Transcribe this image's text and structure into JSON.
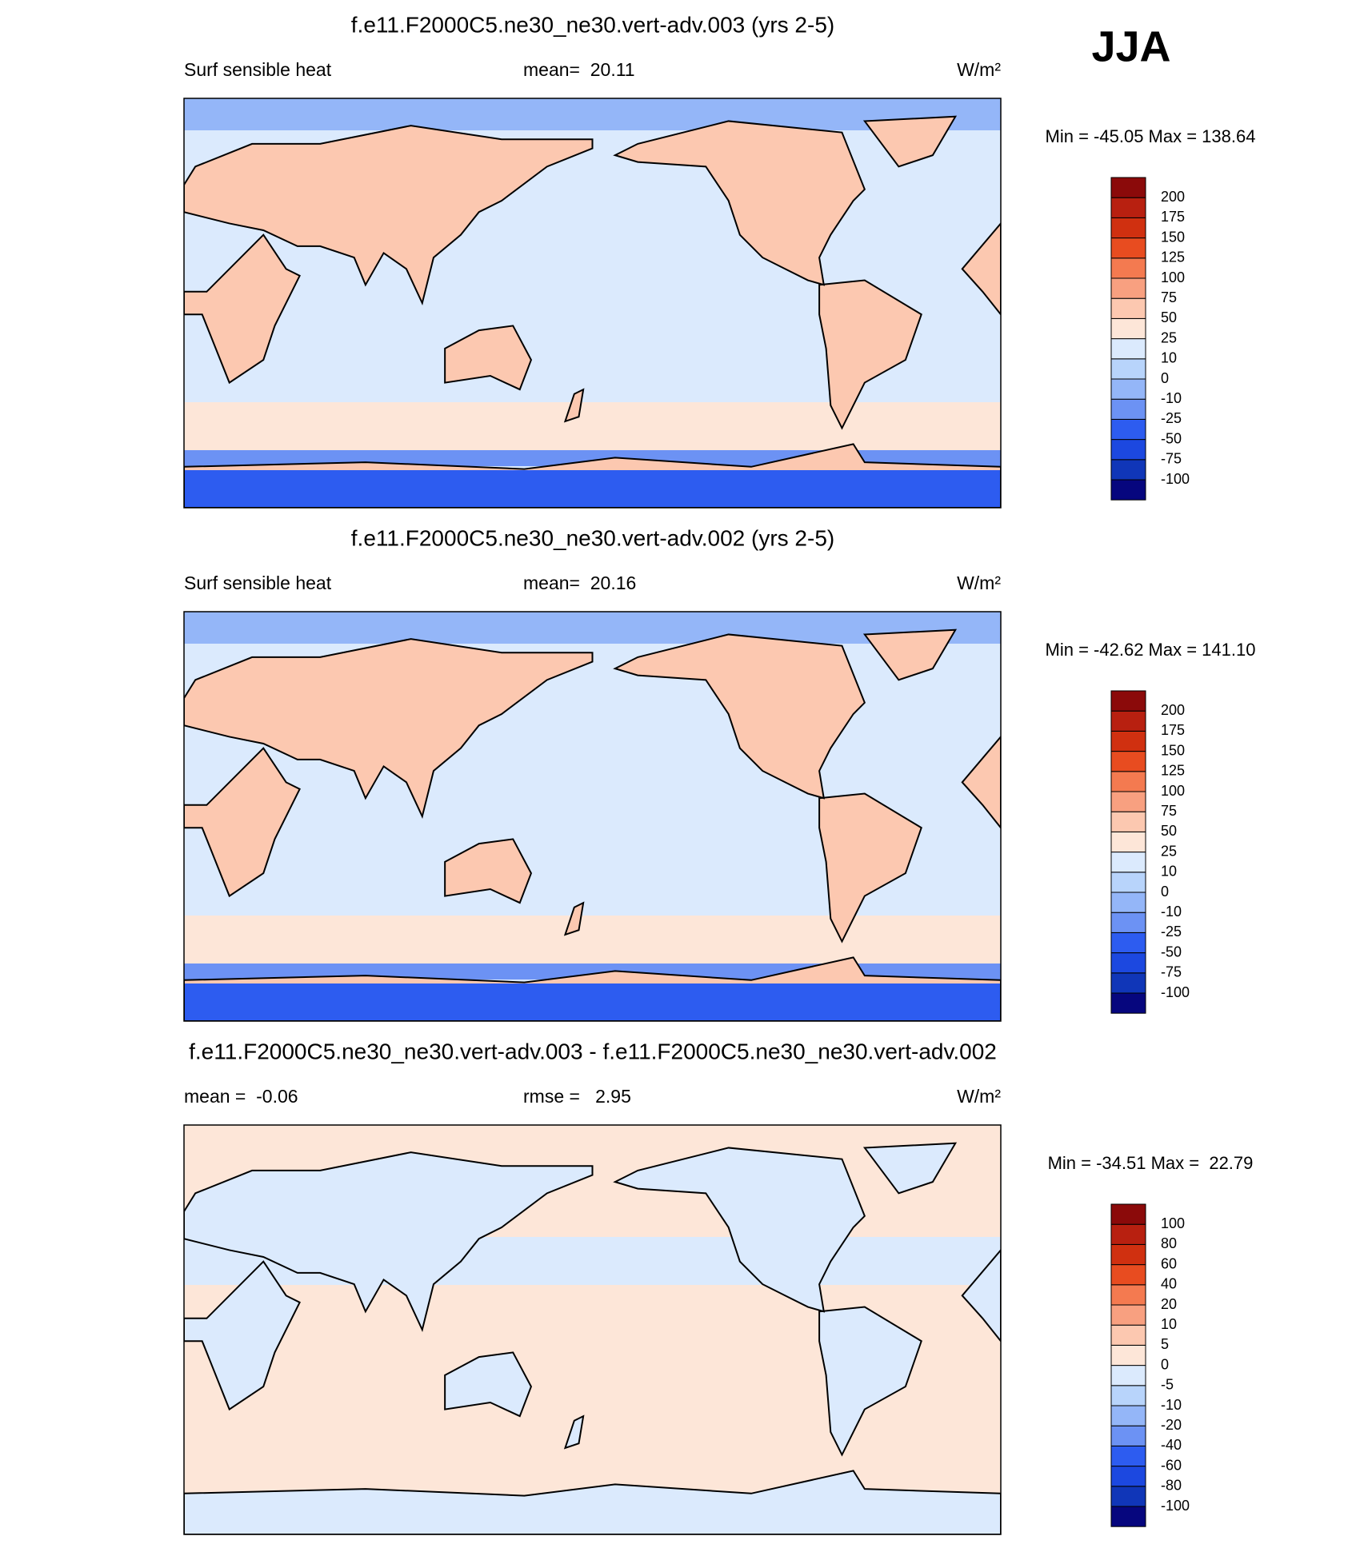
{
  "header": {
    "season": "JJA"
  },
  "panels": [
    {
      "title": "f.e11.F2000C5.ne30_ne30.vert-adv.003 (yrs 2-5)",
      "left_label": "Surf sensible heat",
      "center_label": "mean=  20.11",
      "units": "W/m²",
      "minmax": "Min = -45.05 Max = 138.64",
      "colorbar": {
        "levels": [
          -100,
          -75,
          -50,
          -25,
          -10,
          0,
          10,
          25,
          50,
          75,
          100,
          125,
          150,
          175,
          200
        ],
        "colors": [
          "#06067e",
          "#1036b8",
          "#1c48e0",
          "#2d5cf0",
          "#6c92f4",
          "#94b6f8",
          "#b8d4fb",
          "#dbeafd",
          "#fde6d8",
          "#fcc8b0",
          "#f8a080",
          "#f47a50",
          "#e84c20",
          "#d03010",
          "#b82010",
          "#8b0a0a"
        ]
      }
    },
    {
      "title": "f.e11.F2000C5.ne30_ne30.vert-adv.002 (yrs 2-5)",
      "left_label": "Surf sensible heat",
      "center_label": "mean=  20.16",
      "units": "W/m²",
      "minmax": "Min = -42.62 Max = 141.10",
      "colorbar": {
        "levels": [
          -100,
          -75,
          -50,
          -25,
          -10,
          0,
          10,
          25,
          50,
          75,
          100,
          125,
          150,
          175,
          200
        ],
        "colors": [
          "#06067e",
          "#1036b8",
          "#1c48e0",
          "#2d5cf0",
          "#6c92f4",
          "#94b6f8",
          "#b8d4fb",
          "#dbeafd",
          "#fde6d8",
          "#fcc8b0",
          "#f8a080",
          "#f47a50",
          "#e84c20",
          "#d03010",
          "#b82010",
          "#8b0a0a"
        ]
      }
    },
    {
      "title": "f.e11.F2000C5.ne30_ne30.vert-adv.003 - f.e11.F2000C5.ne30_ne30.vert-adv.002",
      "left_label": "mean =  -0.06",
      "center_label": "rmse =   2.95",
      "units": "W/m²",
      "minmax": "Min = -34.51 Max =  22.79",
      "colorbar": {
        "levels": [
          -100,
          -80,
          -60,
          -40,
          -20,
          -10,
          -5,
          0,
          5,
          10,
          20,
          40,
          60,
          80,
          100
        ],
        "colors": [
          "#06067e",
          "#1036b8",
          "#1c48e0",
          "#2d5cf0",
          "#6c92f4",
          "#94b6f8",
          "#b8d4fb",
          "#dbeafd",
          "#fde6d8",
          "#fcc8b0",
          "#f8a080",
          "#f47a50",
          "#e84c20",
          "#d03010",
          "#b82010",
          "#8b0a0a"
        ]
      }
    }
  ]
}
